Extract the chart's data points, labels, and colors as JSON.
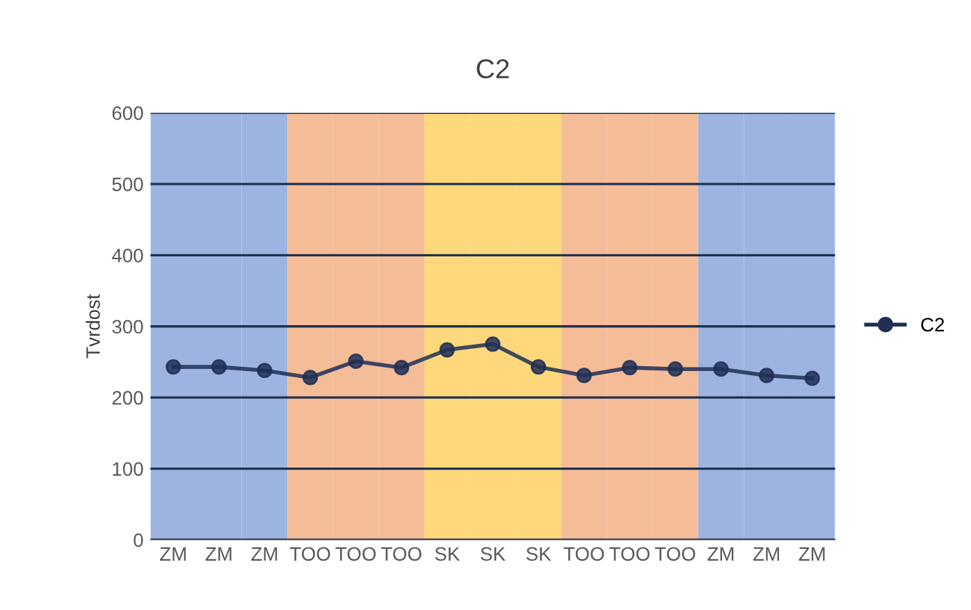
{
  "chart_data": {
    "type": "line",
    "title": "C2",
    "ylabel": "Tvrdost",
    "categories": [
      "ZM",
      "ZM",
      "ZM",
      "TOO",
      "TOO",
      "TOO",
      "SK",
      "SK",
      "SK",
      "TOO",
      "TOO",
      "TOO",
      "ZM",
      "ZM",
      "ZM"
    ],
    "series": [
      {
        "type": "bar",
        "colors": [
          "#9db4e0",
          "#9db4e0",
          "#9db4e0",
          "#f5bc98",
          "#f5bc98",
          "#f5bc98",
          "#ffd87c",
          "#ffd87c",
          "#ffd87c",
          "#f5bc98",
          "#f5bc98",
          "#f5bc98",
          "#9db4e0",
          "#9db4e0",
          "#9db4e0"
        ],
        "values": [
          600,
          600,
          600,
          600,
          600,
          600,
          600,
          600,
          600,
          600,
          600,
          600,
          600,
          600,
          600
        ]
      },
      {
        "name": "C2",
        "color": "#1f2f55",
        "values": [
          243,
          243,
          238,
          228,
          251,
          242,
          267,
          275,
          243,
          231,
          242,
          240,
          240,
          231,
          227
        ]
      }
    ],
    "ylim": [
      0,
      600
    ],
    "yticks": [
      0,
      100,
      200,
      300,
      400,
      500,
      600
    ],
    "grid": "y",
    "legend": "right",
    "marker": "circle"
  }
}
